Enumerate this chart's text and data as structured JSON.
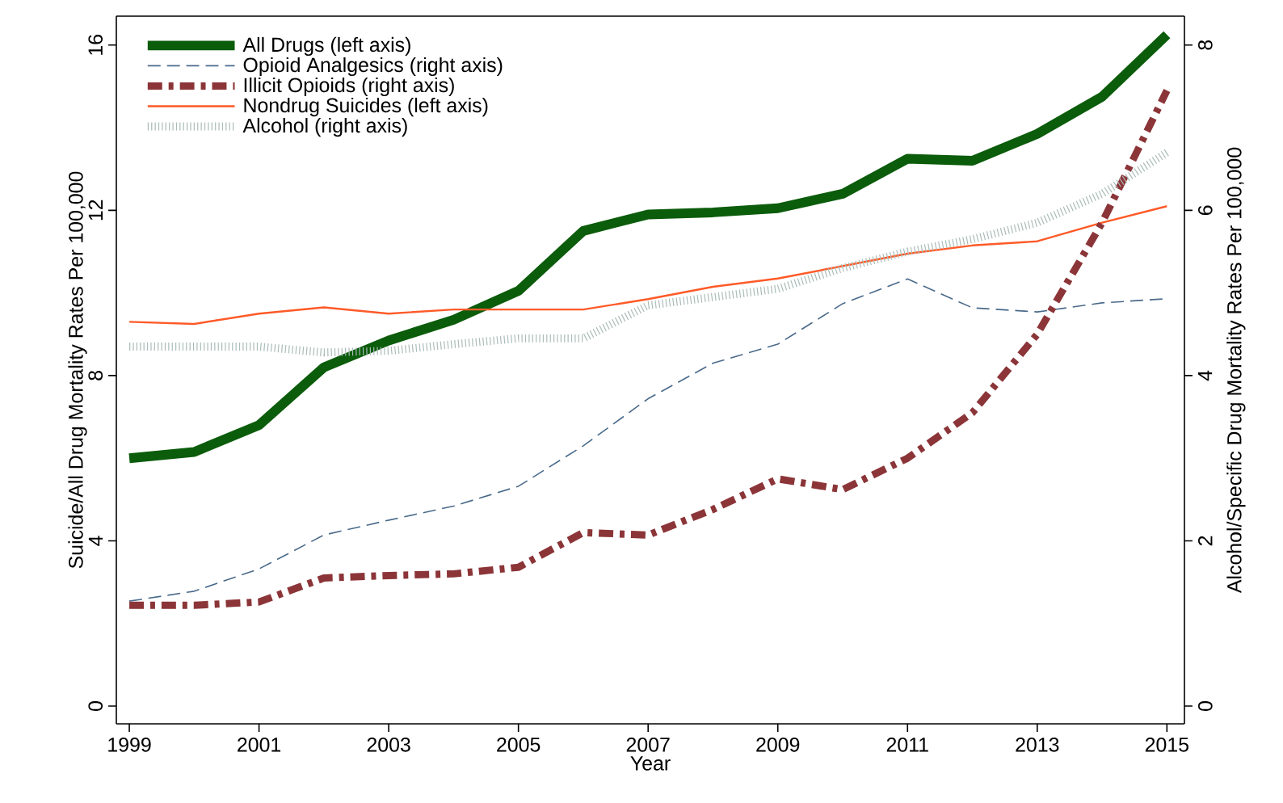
{
  "chart_data": {
    "type": "line",
    "xlabel": "Year",
    "ylabel": "Suicide/All Drug Mortality Rates Per 100,000",
    "y2label": "Alcohol/Specific Drug Mortality Rates Per 100,000",
    "x": [
      1999,
      2000,
      2001,
      2002,
      2003,
      2004,
      2005,
      2006,
      2007,
      2008,
      2009,
      2010,
      2011,
      2012,
      2013,
      2014,
      2015
    ],
    "xlim": [
      1998.8,
      2015.27
    ],
    "xticks": [
      1999,
      2001,
      2003,
      2005,
      2007,
      2009,
      2011,
      2013,
      2015
    ],
    "ylim": [
      -0.43,
      16.7
    ],
    "yticks": [
      0,
      4,
      8,
      12,
      16
    ],
    "y2lim": [
      -0.215,
      8.35
    ],
    "y2ticks": [
      0,
      2,
      4,
      6,
      8
    ],
    "grid": false,
    "legend": "top left",
    "marker": "none",
    "series": [
      {
        "name": "All Drugs (left axis)",
        "color": "#0b5c0b",
        "line_style": "solid",
        "values": [
          6.0,
          6.15,
          6.8,
          8.2,
          8.85,
          9.35,
          10.05,
          11.5,
          11.9,
          11.95,
          12.05,
          12.4,
          13.25,
          13.2,
          13.85,
          14.75,
          16.25
        ]
      },
      {
        "name": "Opioid Analgesics (right axis)",
        "color": "#4a6a8a",
        "line_style": "dashed",
        "axis": "y2",
        "values": [
          1.27,
          1.39,
          1.66,
          2.07,
          2.25,
          2.42,
          2.66,
          3.15,
          3.72,
          4.15,
          4.38,
          4.87,
          5.17,
          4.82,
          4.77,
          4.88,
          4.93
        ]
      },
      {
        "name": "Illicit Opioids (right axis)",
        "color": "#8b3538",
        "line_style": "dashed",
        "axis": "y2",
        "values": [
          1.22,
          1.22,
          1.26,
          1.55,
          1.58,
          1.6,
          1.68,
          2.1,
          2.07,
          2.38,
          2.75,
          2.62,
          3.0,
          3.55,
          4.5,
          5.85,
          7.45
        ]
      },
      {
        "name": "Nondrug Suicides (left axis)",
        "color": "#ff5a28",
        "line_style": "solid",
        "values": [
          9.3,
          9.25,
          9.5,
          9.65,
          9.5,
          9.6,
          9.6,
          9.6,
          9.85,
          10.15,
          10.35,
          10.65,
          10.95,
          11.15,
          11.25,
          11.7,
          12.1
        ]
      },
      {
        "name": "Alcohol (right axis)",
        "color": "#a9bcb8",
        "line_style": "dotted",
        "axis": "y2",
        "values": [
          4.35,
          4.35,
          4.35,
          4.28,
          4.3,
          4.38,
          4.45,
          4.45,
          4.85,
          4.95,
          5.05,
          5.3,
          5.5,
          5.65,
          5.85,
          6.2,
          6.7
        ]
      }
    ]
  }
}
